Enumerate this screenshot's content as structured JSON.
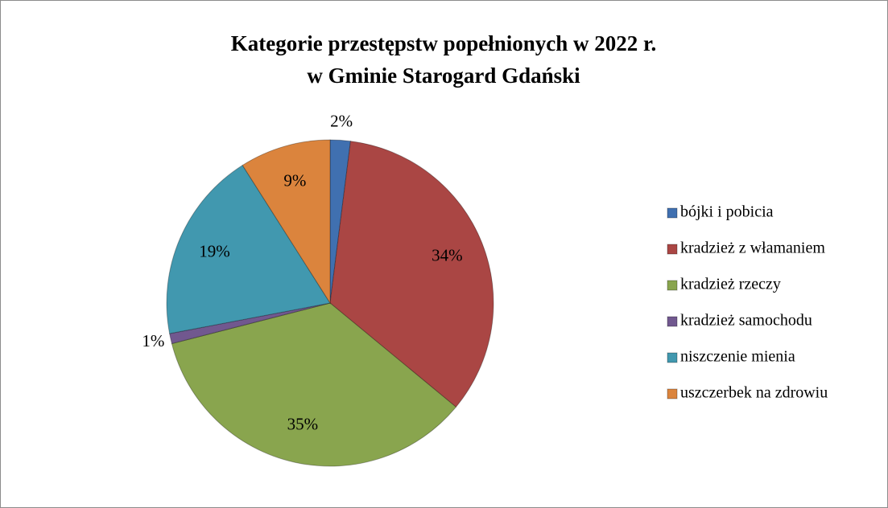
{
  "chart_data": {
    "type": "pie",
    "title": [
      "Kategorie przestępstw popełnionych w 2022 r.",
      "w Gminie Starogard Gdański"
    ],
    "categories": [
      "bójki i pobicia",
      "kradzież z włamaniem",
      "kradzież rzeczy",
      "kradzież samochodu",
      "niszczenie mienia",
      "uszczerbek na zdrowiu"
    ],
    "values": [
      2,
      34,
      35,
      1,
      19,
      9
    ],
    "value_labels": [
      "2%",
      "34%",
      "35%",
      "1%",
      "19%",
      "9%"
    ],
    "colors": [
      "#4070b0",
      "#aa4644",
      "#89a54e",
      "#71588f",
      "#4198af",
      "#db843d"
    ],
    "legend": "right"
  }
}
